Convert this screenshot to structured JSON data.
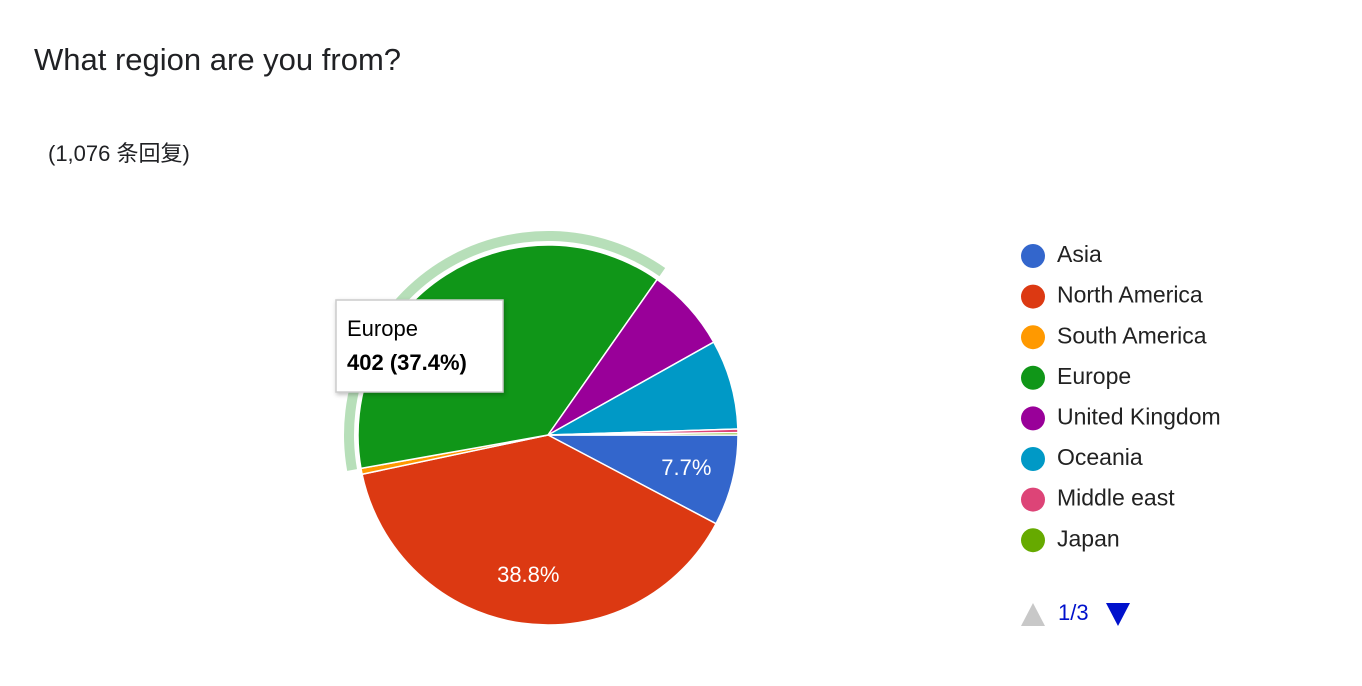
{
  "chart_data": {
    "type": "pie",
    "title": "What region are you from?",
    "subtitle": "(1,076 条回复)",
    "categories": [
      "Asia",
      "North America",
      "South America",
      "Europe",
      "United Kingdom",
      "Oceania",
      "Middle east",
      "Japan"
    ],
    "values": [
      7.7,
      38.8,
      0.5,
      37.4,
      7.1,
      7.6,
      0.3,
      0.2
    ],
    "value_labels": [
      "7.7%",
      "38.8%",
      null,
      null,
      null,
      null,
      null,
      null
    ],
    "colors": [
      "#3366cc",
      "#dc3912",
      "#ff9900",
      "#109618",
      "#990099",
      "#0099c6",
      "#dd4477",
      "#66aa00"
    ],
    "highlighted": 3,
    "tooltip": {
      "title": "Europe",
      "text": "402 (37.4%)"
    },
    "legend_page": "1/3"
  }
}
